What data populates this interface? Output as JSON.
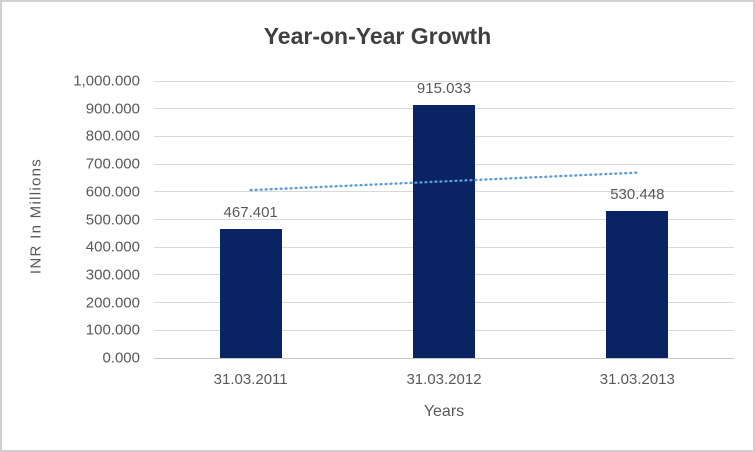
{
  "chart_data": {
    "type": "bar",
    "title": "Year-on-Year Growth",
    "xlabel": "Years",
    "ylabel": "INR In Millions",
    "categories": [
      "31.03.2011",
      "31.03.2012",
      "31.03.2013"
    ],
    "values": [
      467.401,
      915.033,
      530.448
    ],
    "data_labels": [
      "467.401",
      "915.033",
      "530.448"
    ],
    "ylim": [
      0,
      1000
    ],
    "ytick_step": 100,
    "ytick_labels": [
      "0.000",
      "100.000",
      "200.000",
      "300.000",
      "400.000",
      "500.000",
      "600.000",
      "700.000",
      "800.000",
      "900.000",
      "1,000.000"
    ],
    "grid": true,
    "legend": "none",
    "trendline": {
      "type": "linear",
      "style": "dotted",
      "start_value": 606.1,
      "end_value": 669.2
    },
    "colors": {
      "bar": "#0a2463",
      "trendline": "#5b9bd5",
      "gridline": "#d9d9d9",
      "axis_line": "#c8c8c8",
      "text": "#595959",
      "title": "#404040",
      "border": "#d0cece",
      "background": "#ffffff"
    }
  }
}
